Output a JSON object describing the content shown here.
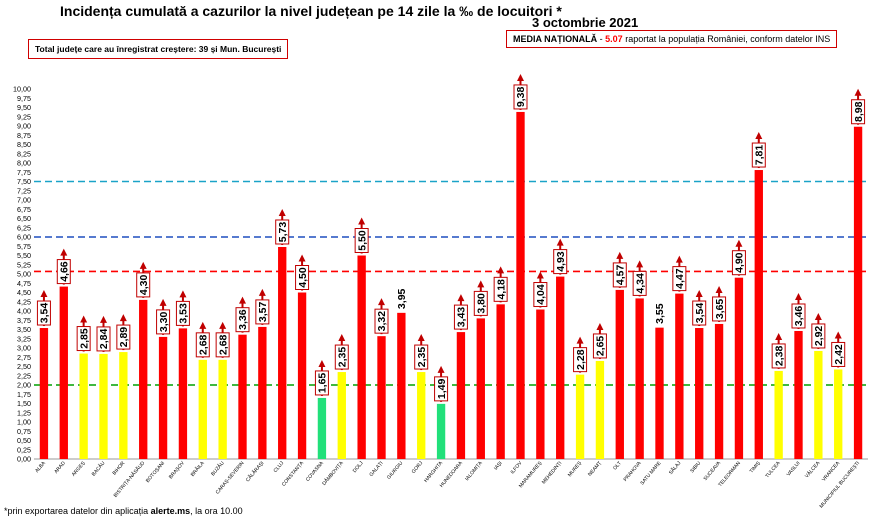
{
  "title": "Incidența cumulată a cazurilor la nivel județean pe 14 zile la ‰ de locuitori *",
  "date": "3 octombrie 2021",
  "note": "Total județe care au înregistrat creștere:  39 și Mun. București",
  "media": {
    "label": "MEDIA NAȚIONALĂ",
    "separator": " - ",
    "value": "5.07",
    "text": " raportat la populația României, conform datelor INS"
  },
  "footer": {
    "prefix": "*prin exportarea datelor din aplicația ",
    "source": "alerte.ms",
    "suffix": ", la ora 10.00"
  },
  "colors": {
    "red": "#ff0000",
    "yellow": "#ffff00",
    "green": "#21e07a",
    "arrow": "#c00000",
    "label_border": "#c00000",
    "line_red": "#ff0000",
    "line_blue": "#1f4fbf",
    "line_cyan": "#1aa3c8",
    "line_green": "#00a000"
  },
  "chart_data": {
    "type": "bar",
    "ylim": [
      0,
      10
    ],
    "yticks": [
      "0,00",
      "0,25",
      "0,50",
      "0,75",
      "1,00",
      "1,25",
      "1,50",
      "1,75",
      "2,00",
      "2,25",
      "2,50",
      "2,75",
      "3,00",
      "3,25",
      "3,50",
      "3,75",
      "4,00",
      "4,25",
      "4,50",
      "4,75",
      "5,00",
      "5,25",
      "5,50",
      "5,75",
      "6,00",
      "6,25",
      "6,50",
      "6,75",
      "7,00",
      "7,25",
      "7,50",
      "7,75",
      "8,00",
      "8,25",
      "8,50",
      "8,75",
      "9,00",
      "9,25",
      "9,50",
      "9,75",
      "10,00"
    ],
    "reference_lines": [
      {
        "value": 5.07,
        "color": "line_red"
      },
      {
        "value": 6.0,
        "color": "line_blue"
      },
      {
        "value": 7.5,
        "color": "line_cyan"
      },
      {
        "value": 2.0,
        "color": "line_green"
      }
    ],
    "bars": [
      {
        "name": "ALBA",
        "value": 3.54,
        "label": "3,54",
        "color": "red",
        "arrow": true
      },
      {
        "name": "ARAD",
        "value": 4.66,
        "label": "4,66",
        "color": "red",
        "arrow": true
      },
      {
        "name": "ARGEȘ",
        "value": 2.85,
        "label": "2,85",
        "color": "yellow",
        "arrow": true
      },
      {
        "name": "BACĂU",
        "value": 2.84,
        "label": "2,84",
        "color": "yellow",
        "arrow": true
      },
      {
        "name": "BIHOR",
        "value": 2.89,
        "label": "2,89",
        "color": "yellow",
        "arrow": true
      },
      {
        "name": "BISTRIȚA-NĂSĂUD",
        "value": 4.3,
        "label": "4,30",
        "color": "red",
        "arrow": true
      },
      {
        "name": "BOTOȘANI",
        "value": 3.3,
        "label": "3,30",
        "color": "red",
        "arrow": true
      },
      {
        "name": "BRAȘOV",
        "value": 3.53,
        "label": "3,53",
        "color": "red",
        "arrow": true
      },
      {
        "name": "BRĂILA",
        "value": 2.68,
        "label": "2,68",
        "color": "yellow",
        "arrow": true
      },
      {
        "name": "BUZĂU",
        "value": 2.68,
        "label": "2,68",
        "color": "yellow",
        "arrow": true
      },
      {
        "name": "CARAȘ-SEVERIN",
        "value": 3.36,
        "label": "3,36",
        "color": "red",
        "arrow": true
      },
      {
        "name": "CĂLĂRAȘI",
        "value": 3.57,
        "label": "3,57",
        "color": "red",
        "arrow": true
      },
      {
        "name": "CLUJ",
        "value": 5.73,
        "label": "5,73",
        "color": "red",
        "arrow": true
      },
      {
        "name": "CONSTANȚA",
        "value": 4.5,
        "label": "4,50",
        "color": "red",
        "arrow": true
      },
      {
        "name": "COVASNA",
        "value": 1.65,
        "label": "1,65",
        "color": "green",
        "arrow": true
      },
      {
        "name": "DÂMBOVIȚA",
        "value": 2.35,
        "label": "2,35",
        "color": "yellow",
        "arrow": true
      },
      {
        "name": "DOLJ",
        "value": 5.5,
        "label": "5,50",
        "color": "red",
        "arrow": true
      },
      {
        "name": "GALAȚI",
        "value": 3.32,
        "label": "3,32",
        "color": "red",
        "arrow": true
      },
      {
        "name": "GIURGIU",
        "value": 3.95,
        "label": "3,95",
        "color": "red",
        "arrow": false
      },
      {
        "name": "GORJ",
        "value": 2.35,
        "label": "2,35",
        "color": "yellow",
        "arrow": true
      },
      {
        "name": "HARGHITA",
        "value": 1.49,
        "label": "1,49",
        "color": "green",
        "arrow": true
      },
      {
        "name": "HUNEDOARA",
        "value": 3.43,
        "label": "3,43",
        "color": "red",
        "arrow": true
      },
      {
        "name": "IALOMIȚA",
        "value": 3.8,
        "label": "3,80",
        "color": "red",
        "arrow": true
      },
      {
        "name": "IAȘI",
        "value": 4.18,
        "label": "4,18",
        "color": "red",
        "arrow": true
      },
      {
        "name": "ILFOV",
        "value": 9.38,
        "label": "9,38",
        "color": "red",
        "arrow": true
      },
      {
        "name": "MARAMUREȘ",
        "value": 4.04,
        "label": "4,04",
        "color": "red",
        "arrow": true
      },
      {
        "name": "MEHEDINȚI",
        "value": 4.93,
        "label": "4,93",
        "color": "red",
        "arrow": true
      },
      {
        "name": "MUREȘ",
        "value": 2.28,
        "label": "2,28",
        "color": "yellow",
        "arrow": true
      },
      {
        "name": "NEAMȚ",
        "value": 2.65,
        "label": "2,65",
        "color": "yellow",
        "arrow": true
      },
      {
        "name": "OLT",
        "value": 4.57,
        "label": "4,57",
        "color": "red",
        "arrow": true
      },
      {
        "name": "PRAHOVA",
        "value": 4.34,
        "label": "4,34",
        "color": "red",
        "arrow": true
      },
      {
        "name": "SATU MARE",
        "value": 3.55,
        "label": "3,55",
        "color": "red",
        "arrow": false
      },
      {
        "name": "SĂLAJ",
        "value": 4.47,
        "label": "4,47",
        "color": "red",
        "arrow": true
      },
      {
        "name": "SIBIU",
        "value": 3.54,
        "label": "3,54",
        "color": "red",
        "arrow": true
      },
      {
        "name": "SUCEAVA",
        "value": 3.65,
        "label": "3,65",
        "color": "red",
        "arrow": true
      },
      {
        "name": "TELEORMAN",
        "value": 4.9,
        "label": "4,90",
        "color": "red",
        "arrow": true
      },
      {
        "name": "TIMIȘ",
        "value": 7.81,
        "label": "7,81",
        "color": "red",
        "arrow": true
      },
      {
        "name": "TULCEA",
        "value": 2.38,
        "label": "2,38",
        "color": "yellow",
        "arrow": true
      },
      {
        "name": "VASLUI",
        "value": 3.46,
        "label": "3,46",
        "color": "red",
        "arrow": true
      },
      {
        "name": "VÂLCEA",
        "value": 2.92,
        "label": "2,92",
        "color": "yellow",
        "arrow": true
      },
      {
        "name": "VRANCEA",
        "value": 2.42,
        "label": "2,42",
        "color": "yellow",
        "arrow": true
      },
      {
        "name": "MUNICIPIUL BUCUREȘTI",
        "value": 8.98,
        "label": "8,98",
        "color": "red",
        "arrow": true
      }
    ]
  }
}
